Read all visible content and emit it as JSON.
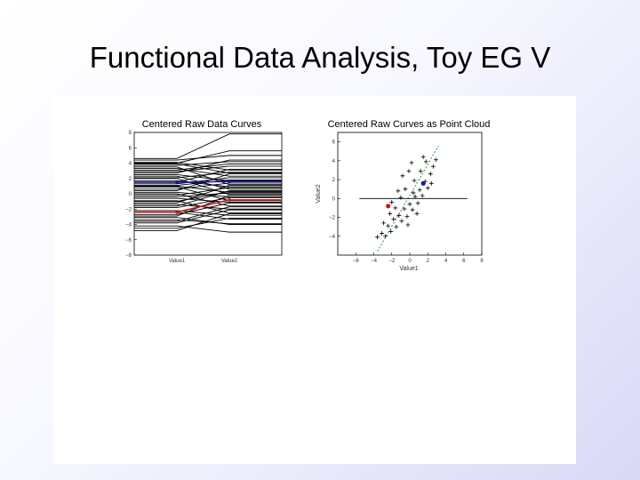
{
  "slide": {
    "title": "Functional Data Analysis, Toy EG V"
  },
  "chart_data": [
    {
      "type": "line",
      "title": "Centered Raw Data Curves",
      "categories": [
        "Value1",
        "Value2"
      ],
      "ylim": [
        -8,
        8
      ],
      "yticks": [
        "−8",
        "−6",
        "−4",
        "−2",
        "0",
        "2",
        "4",
        "6",
        "8"
      ],
      "colors": {
        "curves": "#000000",
        "highlight_blue": "#1a1aa8",
        "highlight_red": "#c21a1a"
      },
      "highlighted_series": [
        {
          "color": "blue",
          "values": [
            1.5,
            1.6
          ]
        },
        {
          "color": "red",
          "values": [
            -2.4,
            -0.8
          ]
        }
      ],
      "series_sample": [
        [
          -4.5,
          -3.2
        ],
        [
          -3.8,
          -2.1
        ],
        [
          -3.1,
          -4.0
        ],
        [
          -2.7,
          -1.2
        ],
        [
          -2.2,
          -2.8
        ],
        [
          -1.8,
          -0.5
        ],
        [
          -1.4,
          -2.0
        ],
        [
          -1.0,
          0.3
        ],
        [
          -0.6,
          -1.1
        ],
        [
          -0.2,
          0.8
        ],
        [
          0.2,
          -0.4
        ],
        [
          0.6,
          1.4
        ],
        [
          1.0,
          0.2
        ],
        [
          1.3,
          2.1
        ],
        [
          1.7,
          0.9
        ],
        [
          2.1,
          2.8
        ],
        [
          2.5,
          1.7
        ],
        [
          2.9,
          3.6
        ],
        [
          3.3,
          2.3
        ],
        [
          3.7,
          4.2
        ],
        [
          4.1,
          3.1
        ],
        [
          4.4,
          5.0
        ],
        [
          -4.2,
          -5.0
        ],
        [
          -3.4,
          -3.9
        ],
        [
          -2.9,
          -0.2
        ],
        [
          -1.6,
          0.4
        ],
        [
          -0.9,
          -2.5
        ],
        [
          0.4,
          2.6
        ],
        [
          0.9,
          -0.9
        ],
        [
          1.5,
          3.2
        ],
        [
          2.3,
          0.6
        ],
        [
          2.7,
          4.4
        ],
        [
          3.5,
          1.2
        ],
        [
          4.0,
          5.6
        ],
        [
          4.6,
          7.8
        ],
        [
          -4.8,
          -2.6
        ],
        [
          -3.6,
          -1.7
        ],
        [
          -2.4,
          -3.3
        ],
        [
          -1.2,
          1.1
        ],
        [
          0.0,
          -1.6
        ],
        [
          1.1,
          1.8
        ],
        [
          2.0,
          -0.1
        ],
        [
          3.1,
          3.9
        ],
        [
          3.9,
          2.7
        ],
        [
          -0.4,
          0.1
        ]
      ]
    },
    {
      "type": "scatter",
      "title": "Centered Raw Curves as Point Cloud",
      "xlabel": "Value1",
      "ylabel": "Value2",
      "xlim": [
        -8,
        8
      ],
      "ylim": [
        -6,
        7
      ],
      "xticks": [
        "−6",
        "−4",
        "−2",
        "0",
        "2",
        "4",
        "6",
        "8"
      ],
      "yticks": [
        "−4",
        "−2",
        "0",
        "2",
        "4",
        "6"
      ],
      "colors": {
        "points": "#000000",
        "diagonal": "#1f8a1f",
        "highlight_blue": "#1a1aa8",
        "highlight_red": "#c21a1a"
      },
      "highlighted_points": [
        {
          "color": "blue",
          "x": 1.5,
          "y": 1.6
        },
        {
          "color": "red",
          "x": -2.4,
          "y": -0.8
        }
      ],
      "points_sample": [
        {
          "x": -3.6,
          "y": -4.1
        },
        {
          "x": -3.1,
          "y": -3.7
        },
        {
          "x": -2.7,
          "y": -4.0
        },
        {
          "x": -2.4,
          "y": -2.9
        },
        {
          "x": -2.1,
          "y": -3.5
        },
        {
          "x": -1.8,
          "y": -2.2
        },
        {
          "x": -1.5,
          "y": -3.0
        },
        {
          "x": -1.2,
          "y": -1.8
        },
        {
          "x": -0.9,
          "y": -2.4
        },
        {
          "x": -0.6,
          "y": -1.1
        },
        {
          "x": -0.3,
          "y": -1.9
        },
        {
          "x": 0.0,
          "y": -0.6
        },
        {
          "x": 0.3,
          "y": -1.2
        },
        {
          "x": 0.6,
          "y": 0.2
        },
        {
          "x": 0.9,
          "y": -0.5
        },
        {
          "x": 1.1,
          "y": 0.9
        },
        {
          "x": 1.4,
          "y": 0.3
        },
        {
          "x": 1.7,
          "y": 1.8
        },
        {
          "x": 2.0,
          "y": 1.1
        },
        {
          "x": 2.3,
          "y": 2.6
        },
        {
          "x": 2.6,
          "y": 3.4
        },
        {
          "x": 2.9,
          "y": 4.1
        },
        {
          "x": -2.0,
          "y": -0.4
        },
        {
          "x": -1.0,
          "y": 0.1
        },
        {
          "x": -0.5,
          "y": 1.0
        },
        {
          "x": 0.5,
          "y": 1.9
        },
        {
          "x": 1.2,
          "y": 2.9
        },
        {
          "x": 0.2,
          "y": 3.8
        },
        {
          "x": -0.8,
          "y": 2.4
        },
        {
          "x": 1.8,
          "y": 3.9
        },
        {
          "x": -1.6,
          "y": -1.0
        },
        {
          "x": -0.2,
          "y": -2.8
        },
        {
          "x": 0.8,
          "y": -1.6
        },
        {
          "x": -2.9,
          "y": -2.6
        },
        {
          "x": 2.4,
          "y": 1.6
        },
        {
          "x": 1.5,
          "y": 4.4
        },
        {
          "x": -0.1,
          "y": 2.9
        },
        {
          "x": -1.3,
          "y": 0.8
        },
        {
          "x": 0.4,
          "y": 0.6
        },
        {
          "x": -2.2,
          "y": -1.6
        }
      ]
    }
  ]
}
